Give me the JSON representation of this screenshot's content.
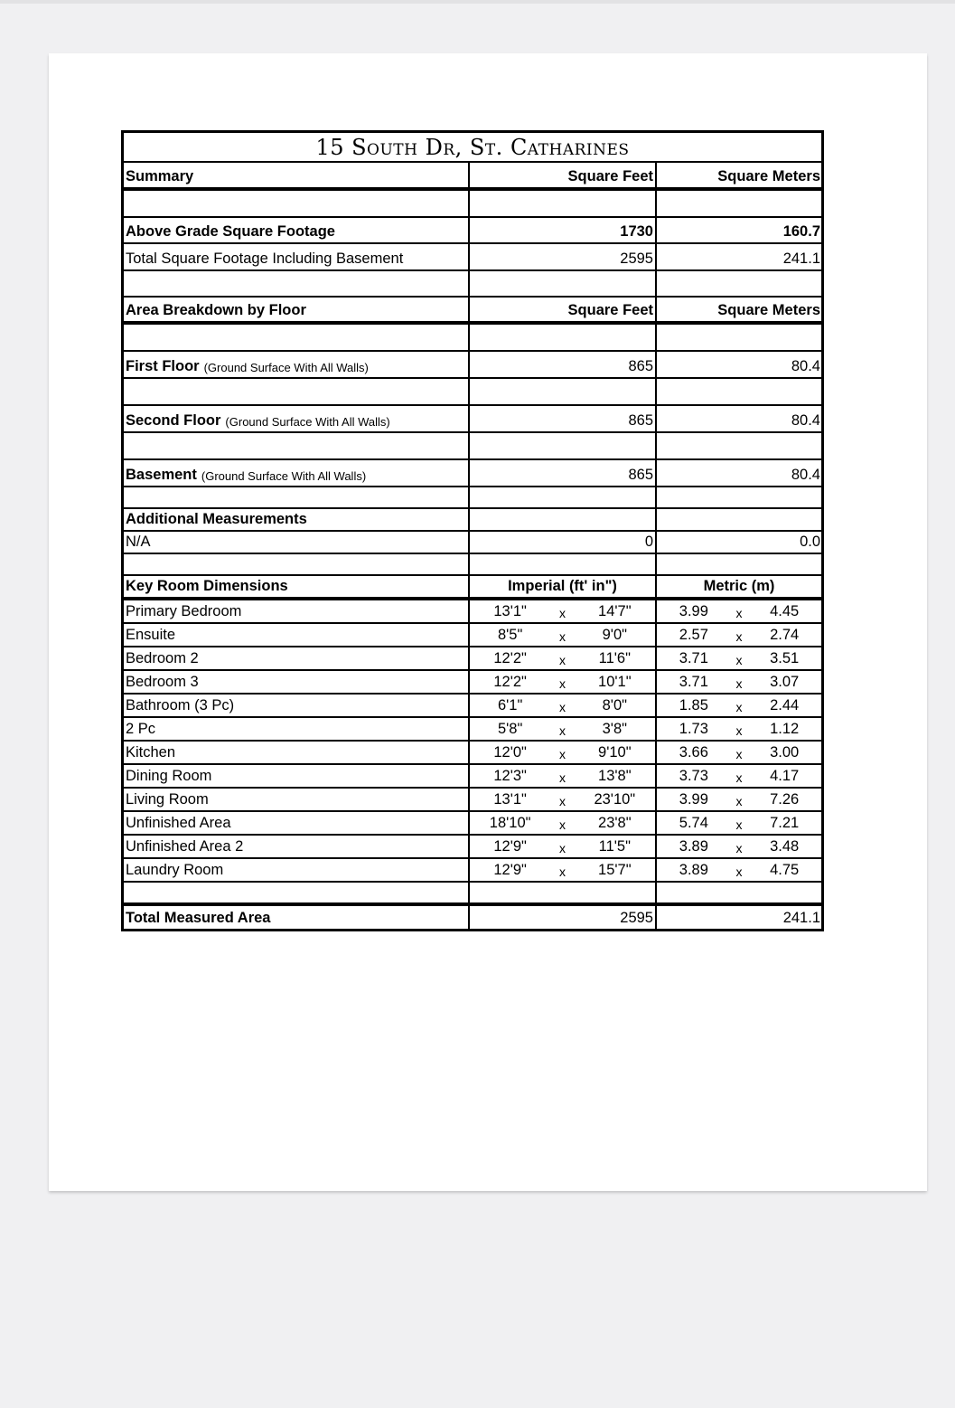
{
  "title": "15 South Dr, St. Catharines",
  "summary": {
    "header": {
      "label": "Summary",
      "sqft": "Square Feet",
      "sqm": "Square Meters"
    },
    "above_grade": {
      "label": "Above Grade Square Footage",
      "sqft": "1730",
      "sqm": "160.7"
    },
    "total_incl_basement": {
      "label": "Total Square Footage Including Basement",
      "sqft": "2595",
      "sqm": "241.1"
    }
  },
  "floors": {
    "header": {
      "label": "Area Breakdown by Floor",
      "sqft": "Square Feet",
      "sqm": "Square Meters"
    },
    "items": [
      {
        "label": "First Floor",
        "note": "(Ground Surface With All Walls)",
        "sqft": "865",
        "sqm": "80.4"
      },
      {
        "label": "Second Floor",
        "note": "(Ground Surface With All Walls)",
        "sqft": "865",
        "sqm": "80.4"
      },
      {
        "label": "Basement",
        "note": "(Ground Surface With All Walls)",
        "sqft": "865",
        "sqm": "80.4"
      }
    ]
  },
  "additional": {
    "header": "Additional Measurements",
    "label": "N/A",
    "sqft": "0",
    "sqm": "0.0"
  },
  "rooms": {
    "header": {
      "label": "Key Room Dimensions",
      "imperial": "Imperial (ft' in\")",
      "metric": "Metric (m)"
    },
    "separator": "x",
    "items": [
      {
        "name": "Primary Bedroom",
        "imp": [
          "13'1\"",
          "14'7\""
        ],
        "met": [
          "3.99",
          "4.45"
        ]
      },
      {
        "name": "Ensuite",
        "imp": [
          "8'5\"",
          "9'0\""
        ],
        "met": [
          "2.57",
          "2.74"
        ]
      },
      {
        "name": "Bedroom 2",
        "imp": [
          "12'2\"",
          "11'6\""
        ],
        "met": [
          "3.71",
          "3.51"
        ]
      },
      {
        "name": "Bedroom 3",
        "imp": [
          "12'2\"",
          "10'1\""
        ],
        "met": [
          "3.71",
          "3.07"
        ]
      },
      {
        "name": "Bathroom (3 Pc)",
        "imp": [
          "6'1\"",
          "8'0\""
        ],
        "met": [
          "1.85",
          "2.44"
        ]
      },
      {
        "name": "2 Pc",
        "imp": [
          "5'8\"",
          "3'8\""
        ],
        "met": [
          "1.73",
          "1.12"
        ]
      },
      {
        "name": "Kitchen",
        "imp": [
          "12'0\"",
          "9'10\""
        ],
        "met": [
          "3.66",
          "3.00"
        ]
      },
      {
        "name": "Dining Room",
        "imp": [
          "12'3\"",
          "13'8\""
        ],
        "met": [
          "3.73",
          "4.17"
        ]
      },
      {
        "name": "Living Room",
        "imp": [
          "13'1\"",
          "23'10\""
        ],
        "met": [
          "3.99",
          "7.26"
        ]
      },
      {
        "name": "Unfinished Area",
        "imp": [
          "18'10\"",
          "23'8\""
        ],
        "met": [
          "5.74",
          "7.21"
        ]
      },
      {
        "name": "Unfinished Area 2",
        "imp": [
          "12'9\"",
          "11'5\""
        ],
        "met": [
          "3.89",
          "3.48"
        ]
      },
      {
        "name": "Laundry Room",
        "imp": [
          "12'9\"",
          "15'7\""
        ],
        "met": [
          "3.89",
          "4.75"
        ]
      }
    ]
  },
  "total": {
    "label": "Total Measured Area",
    "sqft": "2595",
    "sqm": "241.1"
  }
}
